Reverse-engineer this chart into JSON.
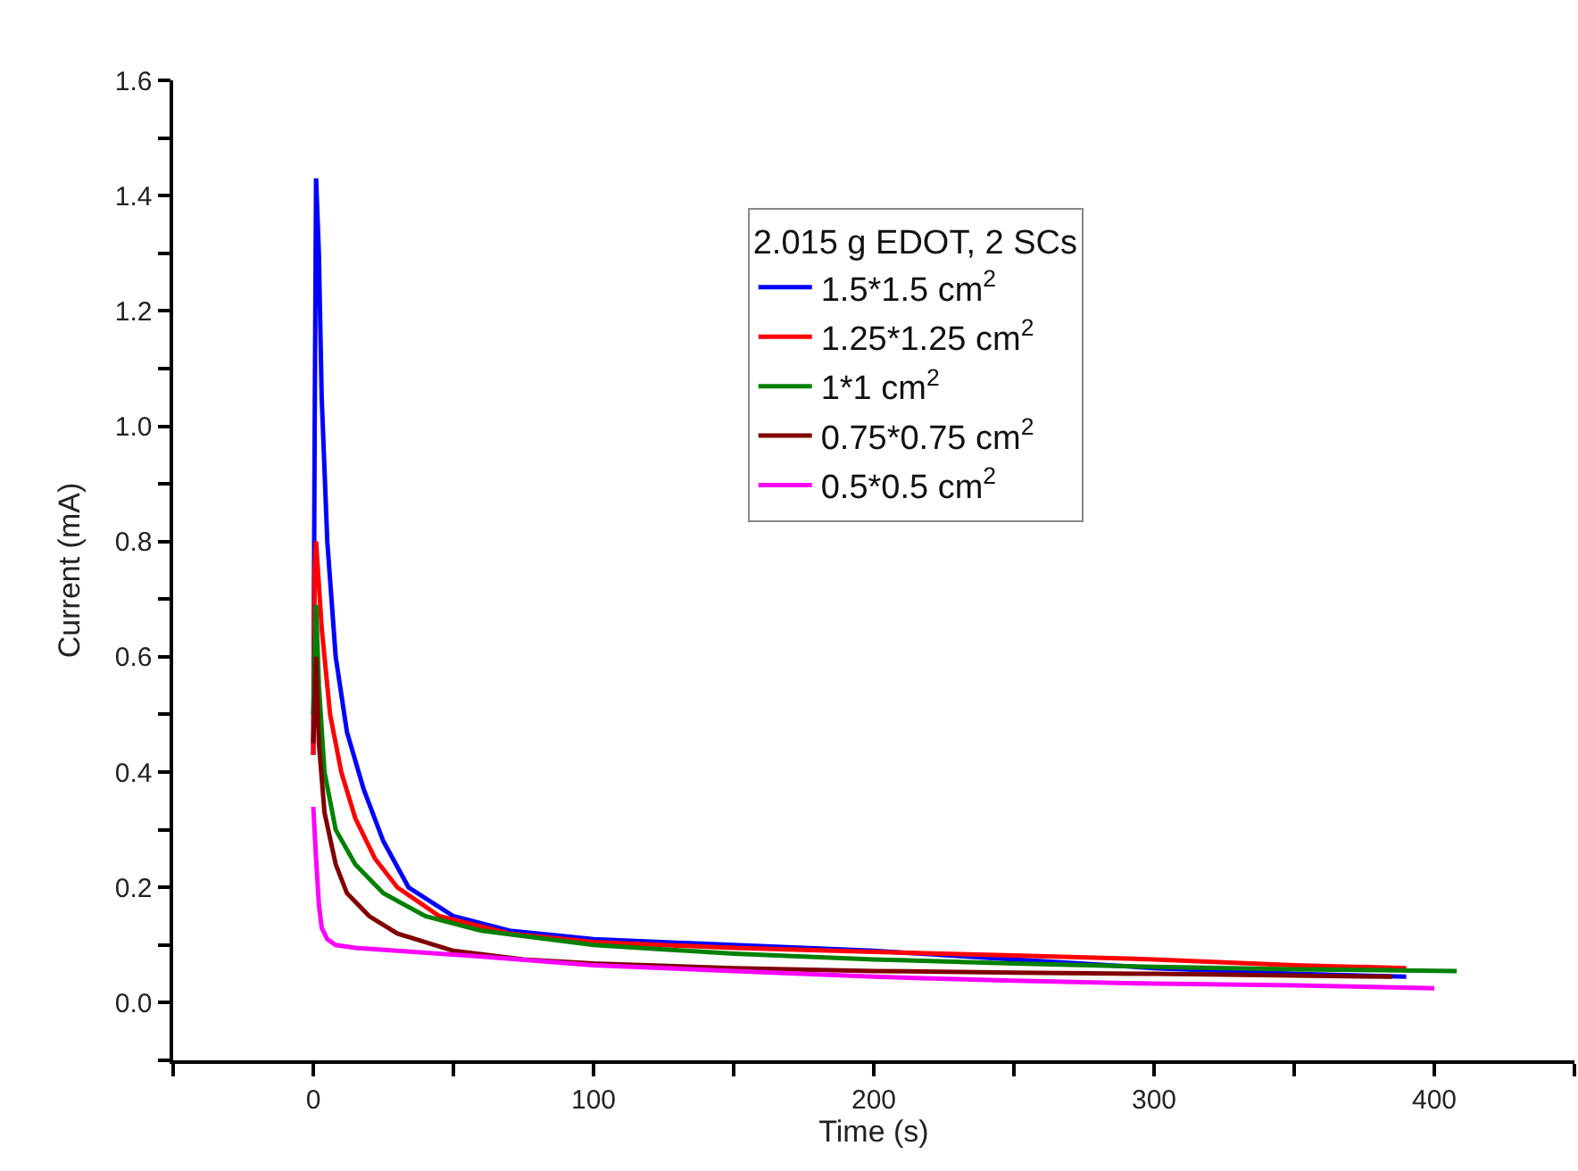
{
  "chart_data": {
    "type": "line",
    "xlabel": "Time (s)",
    "ylabel": "Current (mA)",
    "legend_title": "2.015 g EDOT, 2 SCs",
    "legend": "top right",
    "grid": false,
    "marker": "none",
    "line_style": "solid",
    "xlim": [
      -50,
      450
    ],
    "xticks": [
      {
        "value": -50,
        "label": null
      },
      0,
      {
        "value": 50,
        "label": null
      },
      100,
      {
        "value": 150,
        "label": null
      },
      200,
      {
        "value": 250,
        "label": null
      },
      300,
      {
        "value": 350,
        "label": null
      },
      400,
      {
        "value": 450,
        "label": null
      }
    ],
    "ylim": [
      -0.1,
      1.6
    ],
    "yticks": [
      {
        "value": -0.1,
        "label": null
      },
      {
        "value": 0,
        "label": "0.0"
      },
      {
        "value": 0.1,
        "label": null
      },
      0.2,
      {
        "value": 0.3,
        "label": null
      },
      0.4,
      {
        "value": 0.5,
        "label": null
      },
      0.6,
      {
        "value": 0.7,
        "label": null
      },
      0.8,
      {
        "value": 0.9,
        "label": null
      },
      {
        "value": 1.0,
        "label": "1.0"
      },
      {
        "value": 1.1,
        "label": null
      },
      1.2,
      {
        "value": 1.3,
        "label": null
      },
      1.4,
      {
        "value": 1.5,
        "label": null
      },
      1.6
    ],
    "series": [
      {
        "name": "1.5*1.5 cm$^{2}$",
        "color": "#0000ff",
        "x": [
          0,
          0.5,
          1,
          2,
          3,
          5,
          8,
          12,
          18,
          25,
          34,
          50,
          70,
          100,
          150,
          200,
          250,
          300,
          350,
          390
        ],
        "values": [
          0.43,
          1.0,
          1.43,
          1.3,
          1.05,
          0.8,
          0.6,
          0.47,
          0.37,
          0.28,
          0.2,
          0.15,
          0.125,
          0.11,
          0.1,
          0.09,
          0.075,
          0.06,
          0.05,
          0.045
        ]
      },
      {
        "name": "1.25*1.25 cm$^{2}$",
        "color": "#ff0000",
        "x": [
          0,
          0.5,
          1,
          3,
          6,
          10,
          15,
          22,
          30,
          45,
          70,
          100,
          150,
          200,
          250,
          300,
          350,
          390
        ],
        "values": [
          0.43,
          0.75,
          0.8,
          0.65,
          0.5,
          0.4,
          0.32,
          0.25,
          0.2,
          0.15,
          0.12,
          0.105,
          0.095,
          0.088,
          0.082,
          0.075,
          0.065,
          0.06
        ]
      },
      {
        "name": "1*1 cm$^{2}$",
        "color": "#008000",
        "x": [
          0,
          1,
          2,
          4,
          8,
          15,
          25,
          40,
          60,
          100,
          150,
          200,
          250,
          300,
          350,
          408
        ],
        "values": [
          0.5,
          0.69,
          0.55,
          0.4,
          0.3,
          0.24,
          0.19,
          0.15,
          0.125,
          0.1,
          0.085,
          0.075,
          0.068,
          0.062,
          0.058,
          0.055
        ]
      },
      {
        "name": "0.75*0.75 cm$^{2}$",
        "color": "#800000",
        "x": [
          0,
          1,
          2,
          4,
          8,
          12,
          20,
          30,
          50,
          75,
          100,
          150,
          200,
          250,
          300,
          350,
          385
        ],
        "values": [
          0.45,
          0.6,
          0.45,
          0.33,
          0.24,
          0.19,
          0.15,
          0.12,
          0.09,
          0.075,
          0.068,
          0.06,
          0.055,
          0.052,
          0.05,
          0.047,
          0.045
        ]
      },
      {
        "name": "0.5*0.5 cm$^{2}$",
        "color": "#ff00ff",
        "x": [
          0,
          1,
          2,
          3,
          5,
          8,
          15,
          30,
          60,
          100,
          150,
          200,
          250,
          300,
          350,
          400
        ],
        "values": [
          0.34,
          0.25,
          0.17,
          0.13,
          0.11,
          0.1,
          0.095,
          0.09,
          0.08,
          0.065,
          0.055,
          0.045,
          0.038,
          0.033,
          0.03,
          0.025
        ]
      }
    ]
  }
}
